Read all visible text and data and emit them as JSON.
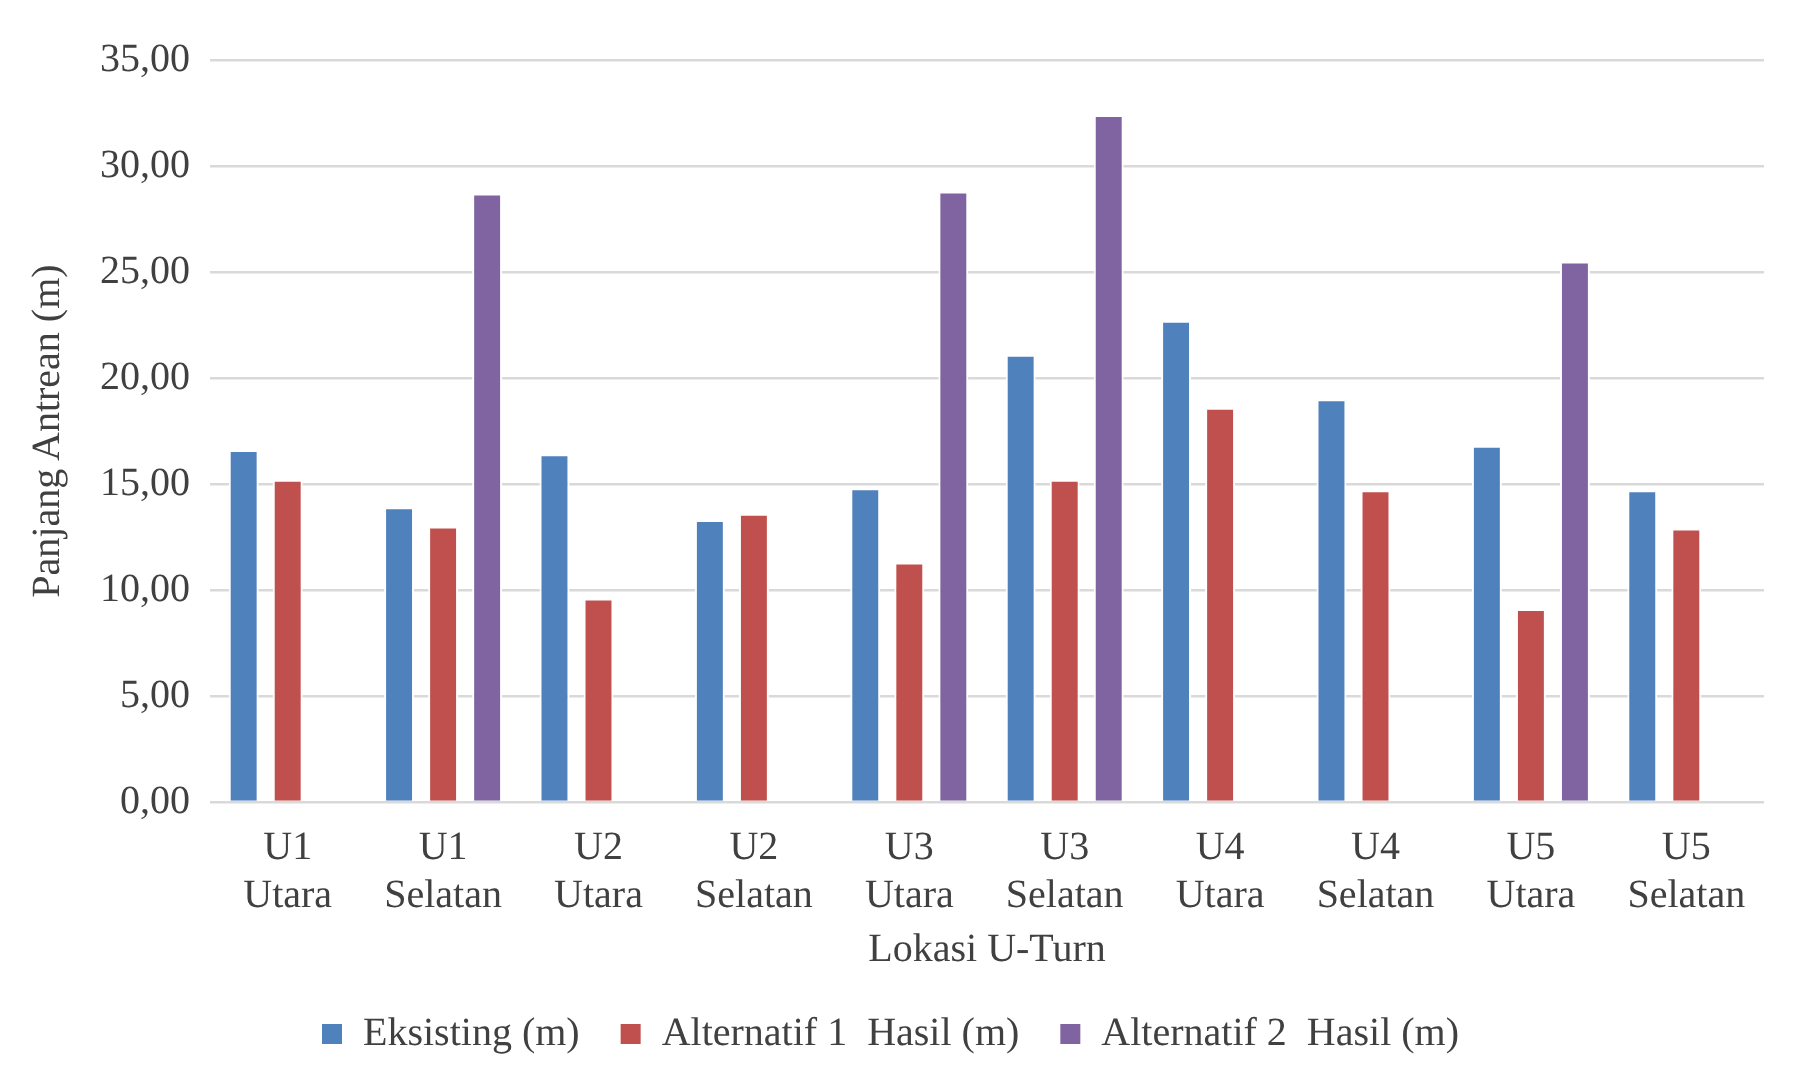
{
  "chart_data": {
    "type": "bar",
    "xlabel": "Lokasi U-Turn",
    "ylabel": "Panjang Antrean (m)",
    "categories": [
      "U1 Utara",
      "U1 Selatan",
      "U2 Utara",
      "U2 Selatan",
      "U3 Utara",
      "U3 Selatan",
      "U4 Utara",
      "U4 Selatan",
      "U5 Utara",
      "U5 Selatan"
    ],
    "series": [
      {
        "name": "Eksisting (m)",
        "color": "#4f81bd",
        "values": [
          16.6,
          13.9,
          16.4,
          13.3,
          14.8,
          21.1,
          22.7,
          19.0,
          16.8,
          14.7
        ]
      },
      {
        "name": "Alternatif 1  Hasil (m)",
        "color": "#c0504d",
        "values": [
          15.2,
          13.0,
          9.6,
          13.6,
          11.3,
          15.2,
          18.6,
          14.7,
          9.1,
          12.9
        ]
      },
      {
        "name": "Alternatif 2  Hasil (m)",
        "color": "#8064a2",
        "values": [
          null,
          28.7,
          null,
          null,
          28.8,
          32.4,
          null,
          null,
          25.5,
          null
        ]
      }
    ],
    "ylim": [
      0,
      35
    ],
    "yticks": [
      {
        "value": 0,
        "label": "0,00"
      },
      {
        "value": 5,
        "label": "5,00"
      },
      {
        "value": 10,
        "label": "10,00"
      },
      {
        "value": 15,
        "label": "15,00"
      },
      {
        "value": 20,
        "label": "20,00"
      },
      {
        "value": 25,
        "label": "25,00"
      },
      {
        "value": 30,
        "label": "30,00"
      },
      {
        "value": 35,
        "label": "35,00"
      }
    ],
    "grid": "y",
    "legend": "bottom"
  }
}
